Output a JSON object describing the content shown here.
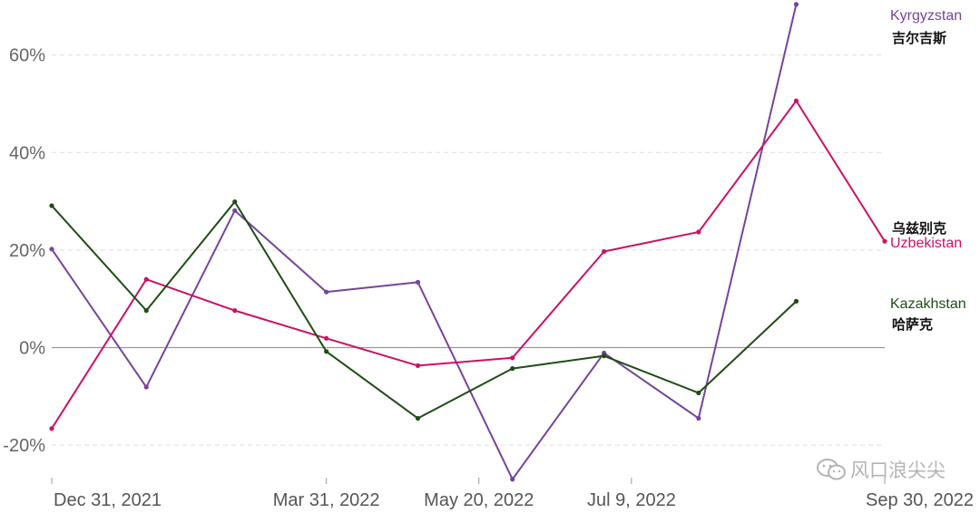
{
  "chart_data": {
    "type": "line",
    "title": "",
    "xlabel": "",
    "ylabel": "",
    "x": [
      "2021-12-31",
      "2022-01-31",
      "2022-03-01",
      "2022-03-31",
      "2022-04-30",
      "2022-05-31",
      "2022-06-30",
      "2022-07-31",
      "2022-08-31",
      "2022-09-30"
    ],
    "xticks": [
      {
        "date": "2021-12-31",
        "label": "Dec 31, 2021"
      },
      {
        "date": "2022-03-31",
        "label": "Mar 31, 2022"
      },
      {
        "date": "2022-05-20",
        "label": "May 20, 2022"
      },
      {
        "date": "2022-07-09",
        "label": "Jul 9, 2022"
      },
      {
        "date": "2022-09-30",
        "label": "Sep 30, 2022"
      }
    ],
    "ylim": [
      -27,
      70
    ],
    "yticks": [
      {
        "value": -20,
        "label": "-20%"
      },
      {
        "value": 0,
        "label": "0%"
      },
      {
        "value": 20,
        "label": "20%"
      },
      {
        "value": 40,
        "label": "40%"
      },
      {
        "value": 60,
        "label": "60%"
      }
    ],
    "grid": true,
    "series": [
      {
        "name": "Kyrgyzstan",
        "name_cn": "吉尔吉斯",
        "color": "#76449a",
        "x": [
          "2021-12-31",
          "2022-01-31",
          "2022-03-01",
          "2022-03-31",
          "2022-04-30",
          "2022-05-31",
          "2022-06-30",
          "2022-07-31",
          "2022-09-01"
        ],
        "values": [
          20.2,
          -8.1,
          28.1,
          11.4,
          13.4,
          -27.0,
          -1.1,
          -14.5,
          70.4
        ]
      },
      {
        "name": "Uzbekistan",
        "name_cn": "乌兹别克",
        "color": "#cc1166",
        "x": [
          "2021-12-31",
          "2022-01-31",
          "2022-03-01",
          "2022-03-31",
          "2022-04-30",
          "2022-05-31",
          "2022-06-30",
          "2022-07-31",
          "2022-09-01",
          "2022-09-30"
        ],
        "values": [
          -16.6,
          14.0,
          7.6,
          1.9,
          -3.7,
          -2.1,
          19.7,
          23.7,
          50.6,
          21.8
        ]
      },
      {
        "name": "Kazakhstan",
        "name_cn": "哈萨克",
        "color": "#1e4d14",
        "x": [
          "2021-12-31",
          "2022-01-31",
          "2022-03-01",
          "2022-03-31",
          "2022-04-30",
          "2022-05-31",
          "2022-06-30",
          "2022-07-31",
          "2022-09-01"
        ],
        "values": [
          29.1,
          7.6,
          29.9,
          -0.8,
          -14.5,
          -4.3,
          -1.7,
          -9.3,
          9.5
        ]
      }
    ]
  },
  "watermark": {
    "text": "风口浪尖尖",
    "icon": "wechat-icon"
  }
}
